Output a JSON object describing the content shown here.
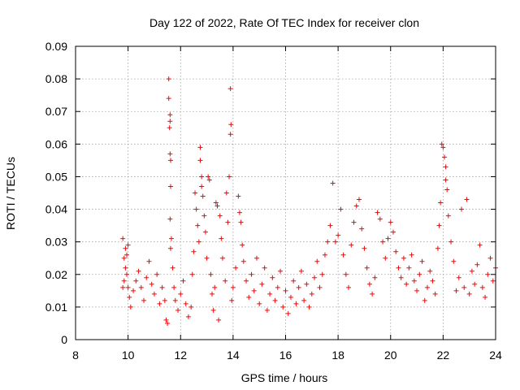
{
  "chart_data": {
    "type": "scatter",
    "title": "Day 122 of 2022, Rate Of TEC Index for receiver clon",
    "xlabel": "GPS time / hours",
    "ylabel": "ROTI / TECUs",
    "xlim": [
      8,
      24
    ],
    "ylim": [
      0,
      0.09
    ],
    "xticks": [
      8,
      10,
      12,
      14,
      16,
      18,
      20,
      22,
      24
    ],
    "xtick_labels": [
      "8",
      "10",
      "12",
      "14",
      "16",
      "18",
      "20",
      "22",
      "24"
    ],
    "yticks": [
      0,
      0.01,
      0.02,
      0.03,
      0.04,
      0.05,
      0.06,
      0.07,
      0.08,
      0.09
    ],
    "ytick_labels": [
      "0",
      "0.01",
      "0.02",
      "0.03",
      "0.04",
      "0.05",
      "0.06",
      "0.07",
      "0.08",
      "0.09"
    ],
    "grid": true,
    "marker": "+",
    "marker_color": "#ff0000",
    "series": [
      {
        "points": [
          [
            9.8,
            0.031
          ],
          [
            9.85,
            0.025
          ],
          [
            9.9,
            0.028
          ],
          [
            9.95,
            0.02
          ],
          [
            10.0,
            0.016
          ],
          [
            9.8,
            0.016
          ],
          [
            9.85,
            0.018
          ],
          [
            9.9,
            0.022
          ],
          [
            9.95,
            0.026
          ],
          [
            10.0,
            0.029
          ],
          [
            10.05,
            0.013
          ],
          [
            10.1,
            0.01
          ],
          [
            10.2,
            0.015
          ],
          [
            10.3,
            0.018
          ],
          [
            10.4,
            0.021
          ],
          [
            10.5,
            0.016
          ],
          [
            10.6,
            0.012
          ],
          [
            10.7,
            0.019
          ],
          [
            10.8,
            0.024
          ],
          [
            10.9,
            0.017
          ],
          [
            11.0,
            0.014
          ],
          [
            11.1,
            0.02
          ],
          [
            11.2,
            0.011
          ],
          [
            11.3,
            0.016
          ],
          [
            11.4,
            0.012
          ],
          [
            11.45,
            0.006
          ],
          [
            11.5,
            0.005
          ],
          [
            11.55,
            0.08
          ],
          [
            11.55,
            0.074
          ],
          [
            11.6,
            0.069
          ],
          [
            11.6,
            0.067
          ],
          [
            11.58,
            0.065
          ],
          [
            11.6,
            0.057
          ],
          [
            11.62,
            0.055
          ],
          [
            11.62,
            0.047
          ],
          [
            11.6,
            0.037
          ],
          [
            11.65,
            0.031
          ],
          [
            11.62,
            0.028
          ],
          [
            11.7,
            0.022
          ],
          [
            11.75,
            0.016
          ],
          [
            11.8,
            0.012
          ],
          [
            11.9,
            0.009
          ],
          [
            12.0,
            0.014
          ],
          [
            12.1,
            0.018
          ],
          [
            12.2,
            0.011
          ],
          [
            12.3,
            0.007
          ],
          [
            12.4,
            0.01
          ],
          [
            12.45,
            0.02
          ],
          [
            12.5,
            0.027
          ],
          [
            12.55,
            0.045
          ],
          [
            12.6,
            0.04
          ],
          [
            12.65,
            0.035
          ],
          [
            12.7,
            0.03
          ],
          [
            12.75,
            0.059
          ],
          [
            12.75,
            0.055
          ],
          [
            12.8,
            0.05
          ],
          [
            12.8,
            0.047
          ],
          [
            12.85,
            0.044
          ],
          [
            12.9,
            0.038
          ],
          [
            12.95,
            0.033
          ],
          [
            13.0,
            0.025
          ],
          [
            13.05,
            0.05
          ],
          [
            13.1,
            0.049
          ],
          [
            13.15,
            0.02
          ],
          [
            13.2,
            0.014
          ],
          [
            13.25,
            0.009
          ],
          [
            13.3,
            0.016
          ],
          [
            13.35,
            0.042
          ],
          [
            13.4,
            0.041
          ],
          [
            13.45,
            0.006
          ],
          [
            13.5,
            0.038
          ],
          [
            13.55,
            0.031
          ],
          [
            13.6,
            0.025
          ],
          [
            13.7,
            0.018
          ],
          [
            13.75,
            0.045
          ],
          [
            13.8,
            0.036
          ],
          [
            13.85,
            0.05
          ],
          [
            13.9,
            0.077
          ],
          [
            13.92,
            0.066
          ],
          [
            13.9,
            0.063
          ],
          [
            13.95,
            0.012
          ],
          [
            14.0,
            0.016
          ],
          [
            14.1,
            0.022
          ],
          [
            14.2,
            0.044
          ],
          [
            14.25,
            0.039
          ],
          [
            14.3,
            0.036
          ],
          [
            14.35,
            0.029
          ],
          [
            14.4,
            0.024
          ],
          [
            14.5,
            0.018
          ],
          [
            14.6,
            0.013
          ],
          [
            14.7,
            0.02
          ],
          [
            14.8,
            0.015
          ],
          [
            14.9,
            0.025
          ],
          [
            15.0,
            0.011
          ],
          [
            15.1,
            0.017
          ],
          [
            15.2,
            0.022
          ],
          [
            15.3,
            0.009
          ],
          [
            15.4,
            0.014
          ],
          [
            15.5,
            0.019
          ],
          [
            15.6,
            0.012
          ],
          [
            15.7,
            0.016
          ],
          [
            15.8,
            0.021
          ],
          [
            15.9,
            0.01
          ],
          [
            16.0,
            0.015
          ],
          [
            16.1,
            0.008
          ],
          [
            16.2,
            0.013
          ],
          [
            16.3,
            0.018
          ],
          [
            16.4,
            0.011
          ],
          [
            16.5,
            0.016
          ],
          [
            16.6,
            0.021
          ],
          [
            16.7,
            0.012
          ],
          [
            16.8,
            0.017
          ],
          [
            16.9,
            0.01
          ],
          [
            17.0,
            0.014
          ],
          [
            17.1,
            0.019
          ],
          [
            17.2,
            0.024
          ],
          [
            17.3,
            0.016
          ],
          [
            17.4,
            0.02
          ],
          [
            17.5,
            0.026
          ],
          [
            17.6,
            0.03
          ],
          [
            17.7,
            0.035
          ],
          [
            17.8,
            0.048
          ],
          [
            17.9,
            0.03
          ],
          [
            18.0,
            0.032
          ],
          [
            18.1,
            0.04
          ],
          [
            18.2,
            0.026
          ],
          [
            18.3,
            0.02
          ],
          [
            18.4,
            0.016
          ],
          [
            18.5,
            0.029
          ],
          [
            18.6,
            0.036
          ],
          [
            18.7,
            0.041
          ],
          [
            18.8,
            0.043
          ],
          [
            18.9,
            0.034
          ],
          [
            19.0,
            0.028
          ],
          [
            19.1,
            0.022
          ],
          [
            19.2,
            0.017
          ],
          [
            19.3,
            0.014
          ],
          [
            19.4,
            0.019
          ],
          [
            19.5,
            0.039
          ],
          [
            19.6,
            0.037
          ],
          [
            19.7,
            0.03
          ],
          [
            19.8,
            0.025
          ],
          [
            19.9,
            0.031
          ],
          [
            20.0,
            0.036
          ],
          [
            20.1,
            0.033
          ],
          [
            20.2,
            0.027
          ],
          [
            20.3,
            0.022
          ],
          [
            20.4,
            0.019
          ],
          [
            20.5,
            0.025
          ],
          [
            20.6,
            0.017
          ],
          [
            20.7,
            0.022
          ],
          [
            20.8,
            0.026
          ],
          [
            20.9,
            0.018
          ],
          [
            21.0,
            0.015
          ],
          [
            21.1,
            0.02
          ],
          [
            21.2,
            0.024
          ],
          [
            21.3,
            0.012
          ],
          [
            21.4,
            0.016
          ],
          [
            21.5,
            0.021
          ],
          [
            21.6,
            0.018
          ],
          [
            21.7,
            0.014
          ],
          [
            21.8,
            0.028
          ],
          [
            21.85,
            0.035
          ],
          [
            21.9,
            0.042
          ],
          [
            21.95,
            0.06
          ],
          [
            22.0,
            0.059
          ],
          [
            22.05,
            0.056
          ],
          [
            22.1,
            0.053
          ],
          [
            22.1,
            0.049
          ],
          [
            22.15,
            0.046
          ],
          [
            22.2,
            0.038
          ],
          [
            22.3,
            0.03
          ],
          [
            22.4,
            0.024
          ],
          [
            22.5,
            0.015
          ],
          [
            22.6,
            0.019
          ],
          [
            22.7,
            0.04
          ],
          [
            22.8,
            0.016
          ],
          [
            22.9,
            0.043
          ],
          [
            23.0,
            0.014
          ],
          [
            23.1,
            0.021
          ],
          [
            23.2,
            0.017
          ],
          [
            23.3,
            0.023
          ],
          [
            23.4,
            0.029
          ],
          [
            23.5,
            0.016
          ],
          [
            23.6,
            0.013
          ],
          [
            23.7,
            0.02
          ],
          [
            23.8,
            0.025
          ],
          [
            23.9,
            0.018
          ],
          [
            24.0,
            0.022
          ]
        ]
      }
    ]
  }
}
